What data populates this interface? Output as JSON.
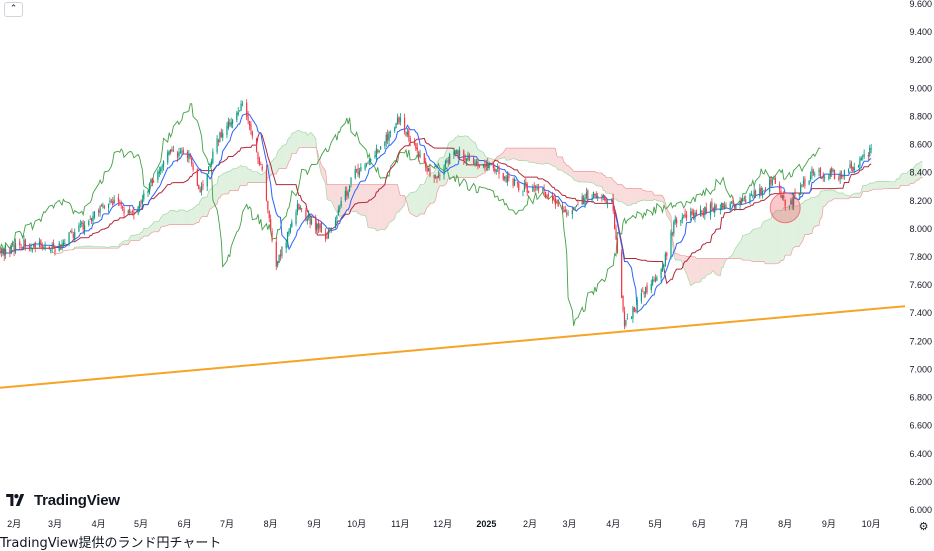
{
  "collapse_icon": "chevron-up-icon",
  "settings_icon": "gear-icon",
  "logo_text": "TradingView",
  "caption": "TradingView提供のランド円チャート",
  "chart_data": {
    "type": "candlestick",
    "title": "",
    "ylim": [
      6.0,
      9.6
    ],
    "y_ticks": [
      "9.600",
      "9.400",
      "9.200",
      "9.000",
      "8.800",
      "8.600",
      "8.400",
      "8.200",
      "8.000",
      "7.800",
      "7.600",
      "7.400",
      "7.200",
      "7.000",
      "6.800",
      "6.600",
      "6.400",
      "6.200",
      "6.000"
    ],
    "x_ticks": [
      "2月",
      "3月",
      "4月",
      "5月",
      "6月",
      "7月",
      "8月",
      "9月",
      "10月",
      "11月",
      "12月",
      "2025",
      "2月",
      "3月",
      "4月",
      "5月",
      "6月",
      "7月",
      "8月",
      "9月",
      "10月"
    ],
    "x_range": [
      "2024-01-22",
      "2025-10-25"
    ],
    "price_path": [
      {
        "date": "2024-01-22",
        "close": 7.83
      },
      {
        "date": "2024-02-10",
        "close": 7.9
      },
      {
        "date": "2024-03-01",
        "close": 7.86
      },
      {
        "date": "2024-03-20",
        "close": 8.02
      },
      {
        "date": "2024-04-10",
        "close": 8.2
      },
      {
        "date": "2024-04-25",
        "close": 8.1
      },
      {
        "date": "2024-05-20",
        "close": 8.55
      },
      {
        "date": "2024-06-05",
        "close": 8.5
      },
      {
        "date": "2024-06-12",
        "close": 8.25
      },
      {
        "date": "2024-06-25",
        "close": 8.65
      },
      {
        "date": "2024-07-12",
        "close": 8.9
      },
      {
        "date": "2024-07-25",
        "close": 8.45
      },
      {
        "date": "2024-08-05",
        "close": 7.75
      },
      {
        "date": "2024-08-20",
        "close": 8.15
      },
      {
        "date": "2024-09-10",
        "close": 7.95
      },
      {
        "date": "2024-09-30",
        "close": 8.4
      },
      {
        "date": "2024-10-15",
        "close": 8.55
      },
      {
        "date": "2024-10-31",
        "close": 8.78
      },
      {
        "date": "2024-11-25",
        "close": 8.35
      },
      {
        "date": "2024-12-10",
        "close": 8.55
      },
      {
        "date": "2025-01-10",
        "close": 8.4
      },
      {
        "date": "2025-01-25",
        "close": 8.3
      },
      {
        "date": "2025-02-10",
        "close": 8.25
      },
      {
        "date": "2025-02-28",
        "close": 8.1
      },
      {
        "date": "2025-03-15",
        "close": 8.25
      },
      {
        "date": "2025-03-31",
        "close": 8.2
      },
      {
        "date": "2025-04-09",
        "close": 7.3
      },
      {
        "date": "2025-04-20",
        "close": 7.5
      },
      {
        "date": "2025-05-05",
        "close": 7.7
      },
      {
        "date": "2025-05-15",
        "close": 8.05
      },
      {
        "date": "2025-06-10",
        "close": 8.15
      },
      {
        "date": "2025-07-05",
        "close": 8.2
      },
      {
        "date": "2025-07-25",
        "close": 8.35
      },
      {
        "date": "2025-08-02",
        "close": 8.15
      },
      {
        "date": "2025-08-20",
        "close": 8.4
      },
      {
        "date": "2025-09-10",
        "close": 8.38
      },
      {
        "date": "2025-10-01",
        "close": 8.55
      }
    ],
    "candle_colors": {
      "up": "#089981",
      "down": "#f23645"
    },
    "support_line": {
      "start": {
        "date": "2024-01-22",
        "value": 6.87
      },
      "end": {
        "date": "2025-10-25",
        "value": 7.45
      },
      "color": "#f7a325"
    },
    "highlight_circle": {
      "date": "2025-08-01",
      "value": 8.15,
      "color": "#f23645"
    },
    "indicators": {
      "type": "ichimoku",
      "tenkan_color": "#2962ff",
      "kijun_color": "#b2283a",
      "chikou_color": "#43a047",
      "cloud_up": "#a5d6a7",
      "cloud_down": "#ef9a9a"
    },
    "grid": false
  }
}
